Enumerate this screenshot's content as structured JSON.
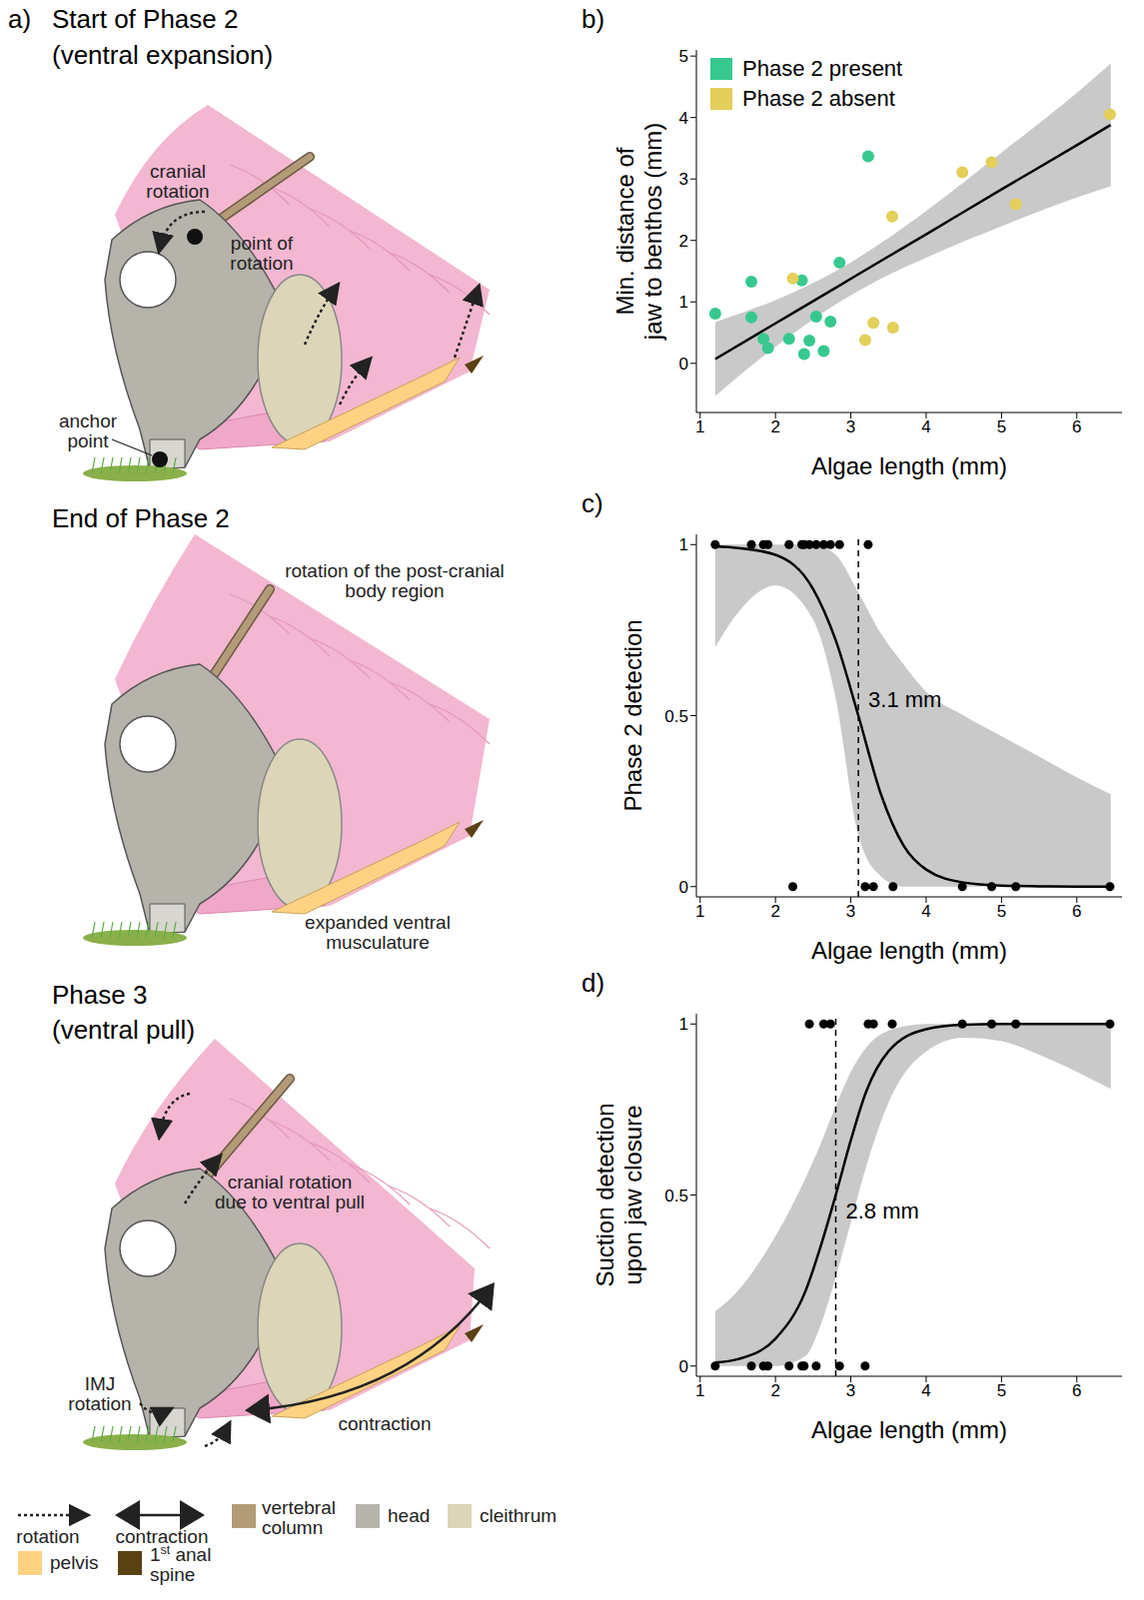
{
  "panel_a": {
    "label": "a)",
    "diagrams": [
      {
        "title": "Start of Phase 2",
        "subtitle": "(ventral expansion)",
        "annotations": [
          "cranial rotation",
          "point of rotation",
          "anchor point"
        ]
      },
      {
        "title": "End of Phase 2",
        "annotations": [
          "rotation of the post-cranial body region",
          "expanded ventral musculature"
        ]
      },
      {
        "title": "Phase 3",
        "subtitle": "(ventral pull)",
        "annotations": [
          "cranial rotation due to ventral pull",
          "IMJ rotation",
          "contraction"
        ]
      }
    ],
    "key": [
      {
        "label": "rotation",
        "line_style": "dotted"
      },
      {
        "label": "contraction",
        "line_style": "solid"
      },
      {
        "label": "vertebral column",
        "color": "#b39b78"
      },
      {
        "label": "head",
        "color": "#b6b3ab"
      },
      {
        "label": "cleithrum",
        "color": "#ddd5b8"
      },
      {
        "label": "pelvis",
        "color": "#fdd283"
      },
      {
        "label": "1st anal spine",
        "color": "#5a4213"
      }
    ]
  },
  "chart_data": [
    {
      "label": "b)",
      "type": "scatter",
      "xlabel": "Algae length (mm)",
      "ylabel": "Min. distance of jaw to benthos (mm)",
      "xlim": [
        0.95,
        6.6
      ],
      "xticks": [
        1,
        2,
        3,
        4,
        5,
        6
      ],
      "ylim": [
        -0.8,
        5.1
      ],
      "yticks": [
        0,
        1,
        2,
        3,
        4,
        5
      ],
      "legend": "upper left",
      "series": [
        {
          "name": "Phase 2 present",
          "color": "#36c98f",
          "x": [
            1.2,
            1.68,
            1.68,
            1.84,
            1.9,
            2.18,
            2.35,
            2.38,
            2.45,
            2.54,
            2.64,
            2.73,
            2.85,
            3.23
          ],
          "values": [
            0.81,
            1.33,
            0.75,
            0.4,
            0.25,
            0.4,
            1.35,
            0.15,
            0.37,
            0.76,
            0.2,
            0.68,
            1.64,
            3.37
          ]
        },
        {
          "name": "Phase 2 absent",
          "color": "#e3cf5a",
          "x": [
            2.23,
            3.19,
            3.3,
            3.55,
            3.56,
            4.48,
            4.87,
            5.19,
            6.44
          ],
          "values": [
            1.38,
            0.38,
            0.66,
            2.39,
            0.58,
            3.11,
            3.27,
            2.59,
            4.05
          ]
        }
      ],
      "fit": {
        "color": "#000000",
        "x": [
          1.2,
          2,
          2.8,
          3.5,
          4,
          5,
          6,
          6.45
        ],
        "values": [
          0.07,
          0.65,
          1.23,
          1.74,
          2.1,
          2.83,
          3.55,
          3.88
        ],
        "ci_low": [
          -0.53,
          0.27,
          0.96,
          1.44,
          1.72,
          2.23,
          2.7,
          2.88
        ],
        "ci_high": [
          0.67,
          1.03,
          1.5,
          2.04,
          2.48,
          3.43,
          4.4,
          4.88
        ]
      }
    },
    {
      "label": "c)",
      "type": "scatter",
      "xlabel": "Algae length (mm)",
      "ylabel": "Phase 2 detection",
      "xlim": [
        0.95,
        6.6
      ],
      "xticks": [
        1,
        2,
        3,
        4,
        5,
        6
      ],
      "ylim": [
        -0.03,
        1.03
      ],
      "yticks": [
        0,
        0.5,
        1
      ],
      "color": "#000000",
      "x": [
        1.2,
        1.68,
        1.84,
        1.9,
        2.18,
        2.35,
        2.38,
        2.45,
        2.54,
        2.64,
        2.73,
        2.85,
        3.23,
        2.23,
        3.19,
        3.3,
        3.56,
        4.48,
        4.87,
        5.19,
        6.44
      ],
      "values": [
        1,
        1,
        1,
        1,
        1,
        1,
        1,
        1,
        1,
        1,
        1,
        1,
        1,
        0,
        0,
        0,
        0,
        0,
        0,
        0,
        0
      ],
      "fit": {
        "color": "#000000",
        "x": [
          1.2,
          1.5,
          2,
          2.5,
          2.8,
          3.1,
          3.4,
          3.7,
          4,
          4.5,
          5,
          5.5,
          6,
          6.45
        ],
        "values": [
          0.995,
          0.99,
          0.97,
          0.87,
          0.72,
          0.5,
          0.27,
          0.12,
          0.05,
          0.012,
          0.003,
          0.001,
          0,
          0
        ],
        "ci_low": [
          0.7,
          0.8,
          0.88,
          0.78,
          0.55,
          0.15,
          0.03,
          0,
          0,
          0,
          0,
          0,
          0,
          0
        ],
        "ci_high": [
          1,
          1,
          1,
          1,
          0.97,
          0.86,
          0.74,
          0.65,
          0.57,
          0.5,
          0.44,
          0.38,
          0.32,
          0.27
        ]
      },
      "threshold": {
        "value": 3.1,
        "label": "3.1 mm"
      }
    },
    {
      "label": "d)",
      "type": "scatter",
      "xlabel": "Algae length (mm)",
      "ylabel": "Suction detection upon jaw closure",
      "xlim": [
        0.95,
        6.6
      ],
      "xticks": [
        1,
        2,
        3,
        4,
        5,
        6
      ],
      "ylim": [
        -0.03,
        1.03
      ],
      "yticks": [
        0,
        0.5,
        1
      ],
      "color": "#000000",
      "x": [
        2.45,
        2.64,
        2.73,
        3.23,
        3.3,
        3.55,
        4.48,
        4.87,
        5.19,
        6.44,
        1.2,
        1.68,
        1.84,
        1.9,
        2.18,
        2.35,
        2.38,
        2.54,
        2.85,
        3.19
      ],
      "values": [
        1,
        1,
        1,
        1,
        1,
        1,
        1,
        1,
        1,
        1,
        0,
        0,
        0,
        0,
        0,
        0,
        0,
        0,
        0,
        0
      ],
      "fit": {
        "color": "#000000",
        "x": [
          1.2,
          1.5,
          2,
          2.4,
          2.6,
          2.8,
          3,
          3.2,
          3.5,
          4,
          4.5,
          5,
          5.5,
          6,
          6.45
        ],
        "values": [
          0.01,
          0.02,
          0.08,
          0.22,
          0.35,
          0.5,
          0.66,
          0.8,
          0.92,
          0.985,
          0.998,
          1,
          1,
          1,
          1
        ],
        "ci_low": [
          0,
          0,
          0,
          0.03,
          0.12,
          0.26,
          0.42,
          0.58,
          0.77,
          0.92,
          0.96,
          0.95,
          0.91,
          0.86,
          0.81
        ],
        "ci_high": [
          0.16,
          0.22,
          0.38,
          0.55,
          0.65,
          0.76,
          0.86,
          0.93,
          0.98,
          1,
          1,
          1,
          1,
          1,
          1
        ]
      },
      "threshold": {
        "value": 2.8,
        "label": "2.8 mm"
      }
    }
  ]
}
